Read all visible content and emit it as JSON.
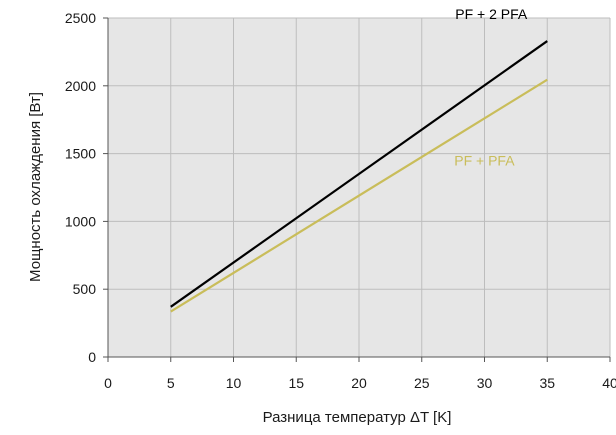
{
  "chart_data": {
    "type": "line",
    "title": "",
    "xlabel": "Разница температур ΔT [K]",
    "ylabel": "Мощность охлаждения [Вт]",
    "xlim": [
      0,
      40
    ],
    "ylim": [
      0,
      2500
    ],
    "xticks": [
      0,
      5,
      10,
      15,
      20,
      25,
      30,
      35,
      40
    ],
    "yticks": [
      0,
      500,
      1000,
      1500,
      2000,
      2500
    ],
    "grid": true,
    "legend": "none",
    "series": [
      {
        "name": "PF + 2 PFA",
        "color": "#000000",
        "x": [
          5,
          35
        ],
        "y": [
          370,
          2330
        ]
      },
      {
        "name": "PF + PFA",
        "color": "#c9bd5a",
        "x": [
          5,
          35
        ],
        "y": [
          335,
          2045
        ]
      }
    ]
  },
  "colors": {
    "plot_background": "#e6e6e6",
    "grid": "#bdbdbd"
  }
}
